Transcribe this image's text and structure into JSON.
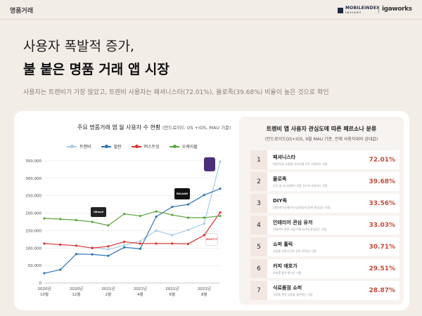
{
  "header": {
    "label": "명품거래",
    "logo_mobileindex": "MOBILEINDEX",
    "logo_mobileindex_sub": "INSIGHT",
    "logo_igaworks": "igaworks"
  },
  "headline": {
    "line1": "사용자 폭발적 증가,",
    "line2": "불 붙은 명품 거래 앱 시장"
  },
  "subtitle": "사용자는 트렌비가 가장 많았고, 트렌비 사용자는 패셔니스타(72.01%), 욜로족(39.68%) 비율이 높은 것으로 확인",
  "chart_titles": {
    "main": "주요 명품거래 앱 월 사용자 수 현황",
    "note": "(안드로이드 OS +iOS, MAU 기준)"
  },
  "chart_data": {
    "type": "line",
    "x": [
      "2020-10",
      "2020-11",
      "2020-12",
      "2021-01",
      "2021-02",
      "2021-03",
      "2021-04",
      "2021-05",
      "2021-06",
      "2021-07",
      "2021-08",
      "2021-09"
    ],
    "x_tick_labels": [
      {
        "idx": 0,
        "year": "2020년",
        "month": "10월"
      },
      {
        "idx": 2,
        "year": "2020년",
        "month": "12월"
      },
      {
        "idx": 4,
        "year": "2021년",
        "month": "2월"
      },
      {
        "idx": 6,
        "year": "2021년",
        "month": "4월"
      },
      {
        "idx": 8,
        "year": "2021년",
        "month": "6월"
      },
      {
        "idx": 10,
        "year": "2021년",
        "month": "8월"
      }
    ],
    "ylim": [
      0,
      350000
    ],
    "y_ticks": [
      0,
      50000,
      100000,
      150000,
      200000,
      250000,
      300000,
      350000
    ],
    "y_tick_labels": [
      "0",
      "50,000",
      "100,000",
      "150,000",
      "200,000",
      "250,000",
      "300,000",
      "350,000"
    ],
    "grid": true,
    "legend_position": "top",
    "series": [
      {
        "name": "트렌비",
        "color": "#a6cbe8",
        "values": [
          null,
          null,
          null,
          102000,
          96000,
          108000,
          120000,
          150000,
          137000,
          152000,
          170000,
          348000
        ]
      },
      {
        "name": "발란",
        "color": "#2e74b5",
        "values": [
          28000,
          38000,
          83000,
          82000,
          78000,
          102000,
          98000,
          190000,
          218000,
          225000,
          252000,
          270000
        ]
      },
      {
        "name": "머스트잇",
        "color": "#d9302c",
        "values": [
          113000,
          110000,
          107000,
          100000,
          105000,
          118000,
          113000,
          113000,
          113000,
          112000,
          137000,
          202000
        ]
      },
      {
        "name": "오케이몰",
        "color": "#5aa53c",
        "values": [
          185000,
          183000,
          180000,
          175000,
          165000,
          198000,
          192000,
          205000,
          195000,
          187000,
          187000,
          192000
        ]
      }
    ]
  },
  "app_logos": [
    {
      "name": "okmall-logo",
      "text": "OKmall",
      "color": "#222222"
    },
    {
      "name": "balaan-logo",
      "text": "BALAAN",
      "color": "#111111"
    },
    {
      "name": "trenbe-logo",
      "text": "",
      "color": "#4b2f7a"
    },
    {
      "name": "mustit-logo",
      "text": "MUST'IT",
      "color": "#ffffff"
    }
  ],
  "persona": {
    "title": "트렌비 앱 사용자 관심도에 따른 페르소나 분류",
    "note": "(안드로이드OS+iOS, 9월 MAU 기준, 전체 사용자대비 상대값)",
    "rows": [
      {
        "num": "1",
        "name": "패셔니스타",
        "desc": "패션/의류 쇼핑몰 서비스를 자주 사용하는 사람",
        "pct": "72.01%"
      },
      {
        "num": "2",
        "name": "욜로족",
        "desc": "소득 및 소비성향이 강할 것으로 추정되는 사람",
        "pct": "39.68%"
      },
      {
        "num": "3",
        "name": "DIY족",
        "desc": "인테리어/공예/가드닝/자동차 등에 관심있는 사람",
        "pct": "33.56%"
      },
      {
        "num": "4",
        "name": "인테리어 관심 유저",
        "desc": "인테리어 관련 쇼핑 커뮤니티에 관심있는 사람",
        "pct": "33.03%"
      },
      {
        "num": "5",
        "name": "쇼퍼 홀릭",
        "desc": "쇼핑을 사용시간의 상위 20%인 사람",
        "pct": "30.71%"
      },
      {
        "num": "6",
        "name": "커피 애호가",
        "desc": "커피를 즐겨 마시는 사람",
        "pct": "29.51%"
      },
      {
        "num": "7",
        "name": "식료품점 쇼퍼",
        "desc": "식료품 관련 쇼핑을 즐겨하는 사람",
        "pct": "28.87%"
      }
    ]
  }
}
